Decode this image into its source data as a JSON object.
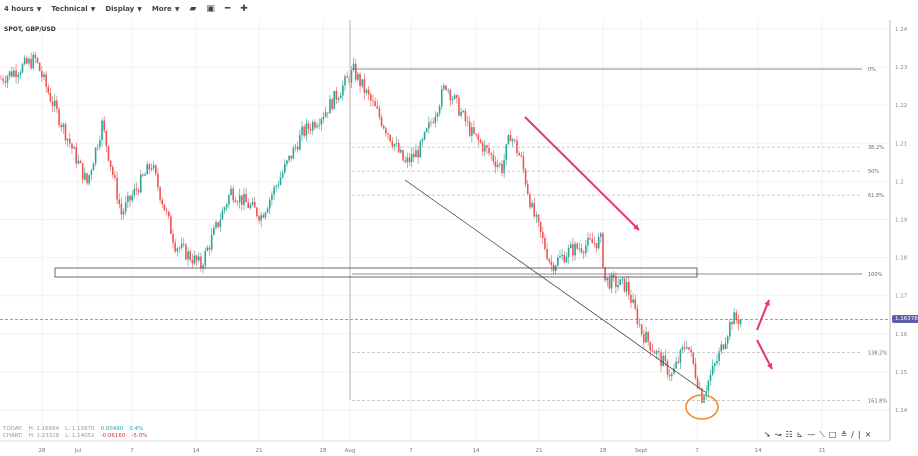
{
  "toolbar": {
    "interval": "4 hours",
    "technical": "Technical",
    "display": "Display",
    "more": "More",
    "icons": [
      "folder-open-icon",
      "save-icon",
      "zoom-out-icon",
      "zoom-in-icon"
    ]
  },
  "symbol": "SPOT, GBP/USD",
  "stats": {
    "today": {
      "label": "TODAY:",
      "high": "H: 1.16664",
      "low": "L: 1.15870",
      "change": "0.00490",
      "pct": "0.4%"
    },
    "chart": {
      "label": "CHART:",
      "high": "H: 1.23328",
      "low": "L: 1.14052",
      "change": "-0.06160",
      "pct": "-5.0%"
    }
  },
  "current_price": "1.16378",
  "colors": {
    "up": "#26a69a",
    "down": "#ef5350",
    "accent": "#5b5ea6",
    "arrow": "#e8336d",
    "circle": "#f08a24"
  },
  "chart_data": {
    "type": "candlestick",
    "y_ticks": [
      "1.24",
      "1.23",
      "1.22",
      "1.21",
      "1.2",
      "1.19",
      "1.18",
      "1.17",
      "1.16",
      "1.15",
      "1.14"
    ],
    "ylim": [
      1.1335,
      1.2435
    ],
    "x_ticks": [
      "28",
      "Jul",
      "7",
      "14",
      "21",
      "28",
      "Aug",
      "7",
      "14",
      "21",
      "28",
      "Sept",
      "7",
      "14",
      "21"
    ],
    "fib_levels": [
      {
        "label": "0%",
        "price": 1.2295
      },
      {
        "label": "38.2%",
        "price": 1.209
      },
      {
        "label": "50%",
        "price": 1.2027
      },
      {
        "label": "61.8%",
        "price": 1.1964
      },
      {
        "label": "100%",
        "price": 1.1757
      },
      {
        "label": "138.2%",
        "price": 1.1551
      },
      {
        "label": "161.8%",
        "price": 1.1425
      }
    ],
    "price_path": [
      [
        0,
        1.227
      ],
      [
        16,
        1.232
      ],
      [
        23,
        1.222
      ],
      [
        40,
        1.1995
      ],
      [
        47,
        1.215
      ],
      [
        56,
        1.1915
      ],
      [
        70,
        1.2045
      ],
      [
        81,
        1.1835
      ],
      [
        93,
        1.178
      ],
      [
        107,
        1.1975
      ],
      [
        121,
        1.191
      ],
      [
        140,
        1.2125
      ],
      [
        151,
        1.2185
      ],
      [
        164,
        1.229
      ],
      [
        177,
        1.216
      ],
      [
        188,
        1.2045
      ],
      [
        195,
        1.2085
      ],
      [
        207,
        1.2255
      ],
      [
        219,
        1.2125
      ],
      [
        233,
        1.2035
      ],
      [
        237,
        1.2125
      ],
      [
        242,
        1.2055
      ],
      [
        247,
        1.1925
      ],
      [
        256,
        1.178
      ],
      [
        265,
        1.182
      ],
      [
        279,
        1.1845
      ],
      [
        281,
        1.174
      ],
      [
        291,
        1.1725
      ],
      [
        298,
        1.1605
      ],
      [
        312,
        1.149
      ],
      [
        319,
        1.158
      ],
      [
        326,
        1.1435
      ],
      [
        333,
        1.153
      ],
      [
        340,
        1.164
      ],
      [
        344,
        1.1637
      ]
    ]
  }
}
